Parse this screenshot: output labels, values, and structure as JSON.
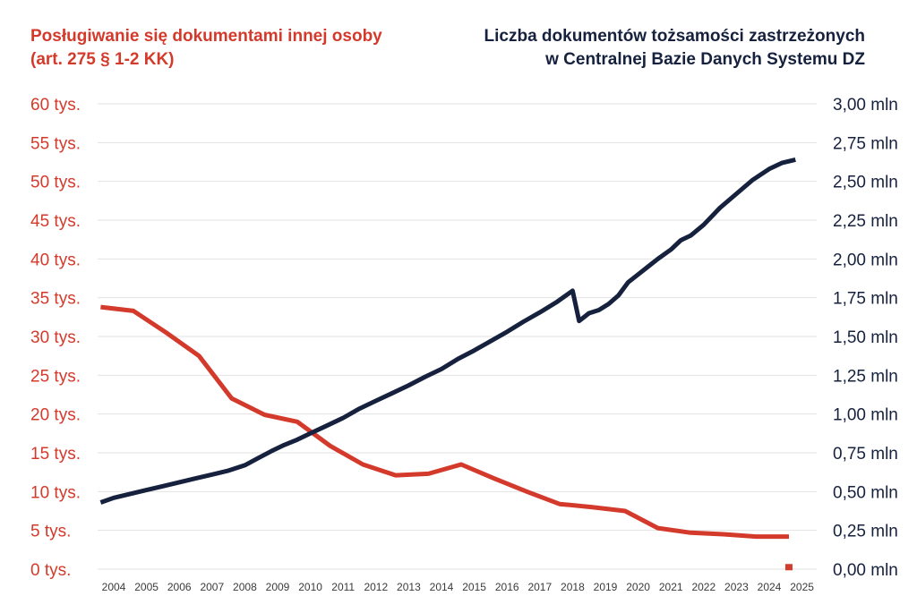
{
  "titles": {
    "left_line1": "Posługiwanie się dokumentami innej osoby",
    "left_line2": "(art. 275 § 1-2 KK)",
    "right_line1": "Liczba dokumentów tożsamości zastrzeżonych",
    "right_line2": "w Centralnej Bazie Danych Systemu DZ"
  },
  "colors": {
    "red": "#d43a2b",
    "navy": "#16213e",
    "grid": "#e2e2e2"
  },
  "chart_data": {
    "type": "line",
    "grid": true,
    "x_tick_labels": [
      "2004",
      "2005",
      "2006",
      "2007",
      "2008",
      "2009",
      "2010",
      "2011",
      "2012",
      "2013",
      "2014",
      "2015",
      "2016",
      "2017",
      "2018",
      "2019",
      "2020",
      "2021",
      "2022",
      "2023",
      "2024",
      "2025"
    ],
    "x_range": [
      2003.6,
      2025.6
    ],
    "left_axis": {
      "ylim": [
        0,
        60
      ],
      "ticks": [
        0,
        5,
        10,
        15,
        20,
        25,
        30,
        35,
        40,
        45,
        50,
        55,
        60
      ],
      "tick_labels": [
        "0 tys.",
        "5 tys.",
        "10 tys.",
        "15 tys.",
        "20 tys.",
        "25 tys.",
        "30 tys.",
        "35 tys.",
        "40 tys.",
        "45 tys.",
        "50 tys.",
        "55 tys.",
        "60 tys."
      ]
    },
    "right_axis": {
      "ylim": [
        0,
        3.0
      ],
      "ticks": [
        0,
        0.25,
        0.5,
        0.75,
        1.0,
        1.25,
        1.5,
        1.75,
        2.0,
        2.25,
        2.5,
        2.75,
        3.0
      ],
      "tick_labels": [
        "0,00 mln",
        "0,25 mln",
        "0,50 mln",
        "0,75 mln",
        "1,00 mln",
        "1,25 mln",
        "1,50 mln",
        "1,75 mln",
        "2,00 mln",
        "2,25 mln",
        "2,50 mln",
        "2,75 mln",
        "3,00 mln"
      ]
    },
    "series": [
      {
        "axis": "left",
        "color": "#d43a2b",
        "x": [
          2003.6,
          2004.6,
          2005.6,
          2006.6,
          2007.6,
          2008.6,
          2009.6,
          2010.6,
          2011.6,
          2012.6,
          2013.6,
          2014.6,
          2015.6,
          2016.6,
          2017.6,
          2018.6,
          2019.6,
          2020.6,
          2021.6,
          2022.6,
          2023.6,
          2024.6
        ],
        "y": [
          33.8,
          33.3,
          30.5,
          27.5,
          22.0,
          19.9,
          19.0,
          15.9,
          13.5,
          12.1,
          12.3,
          13.5,
          11.7,
          10.0,
          8.4,
          8.0,
          7.5,
          5.3,
          4.7,
          4.5,
          4.2,
          4.2
        ]
      },
      {
        "axis": "right",
        "color": "#16213e",
        "x": [
          2003.6,
          2004.0,
          2004.5,
          2005.0,
          2005.5,
          2006.0,
          2006.5,
          2007.0,
          2007.5,
          2008.0,
          2008.4,
          2008.8,
          2009.2,
          2009.6,
          2010.0,
          2010.5,
          2011.0,
          2011.5,
          2012.0,
          2012.5,
          2013.0,
          2013.5,
          2014.0,
          2014.5,
          2015.0,
          2015.5,
          2016.0,
          2016.5,
          2017.0,
          2017.5,
          2018.0,
          2018.2,
          2018.5,
          2018.8,
          2019.1,
          2019.4,
          2019.7,
          2020.0,
          2020.3,
          2020.6,
          2021.0,
          2021.3,
          2021.6,
          2022.0,
          2022.5,
          2023.0,
          2023.5,
          2024.0,
          2024.4,
          2024.8
        ],
        "y": [
          0.43,
          0.46,
          0.485,
          0.51,
          0.535,
          0.56,
          0.585,
          0.61,
          0.635,
          0.67,
          0.715,
          0.76,
          0.8,
          0.835,
          0.875,
          0.925,
          0.975,
          1.035,
          1.085,
          1.135,
          1.185,
          1.24,
          1.29,
          1.355,
          1.41,
          1.47,
          1.53,
          1.595,
          1.655,
          1.72,
          1.795,
          1.6,
          1.65,
          1.67,
          1.71,
          1.765,
          1.85,
          1.9,
          1.95,
          2.0,
          2.06,
          2.12,
          2.15,
          2.22,
          2.33,
          2.42,
          2.51,
          2.58,
          2.62,
          2.64
        ]
      }
    ],
    "annotations": [
      {
        "type": "marker",
        "axis": "left",
        "x": 2024.6,
        "y": 0.2,
        "color": "#d43a2b"
      }
    ]
  }
}
